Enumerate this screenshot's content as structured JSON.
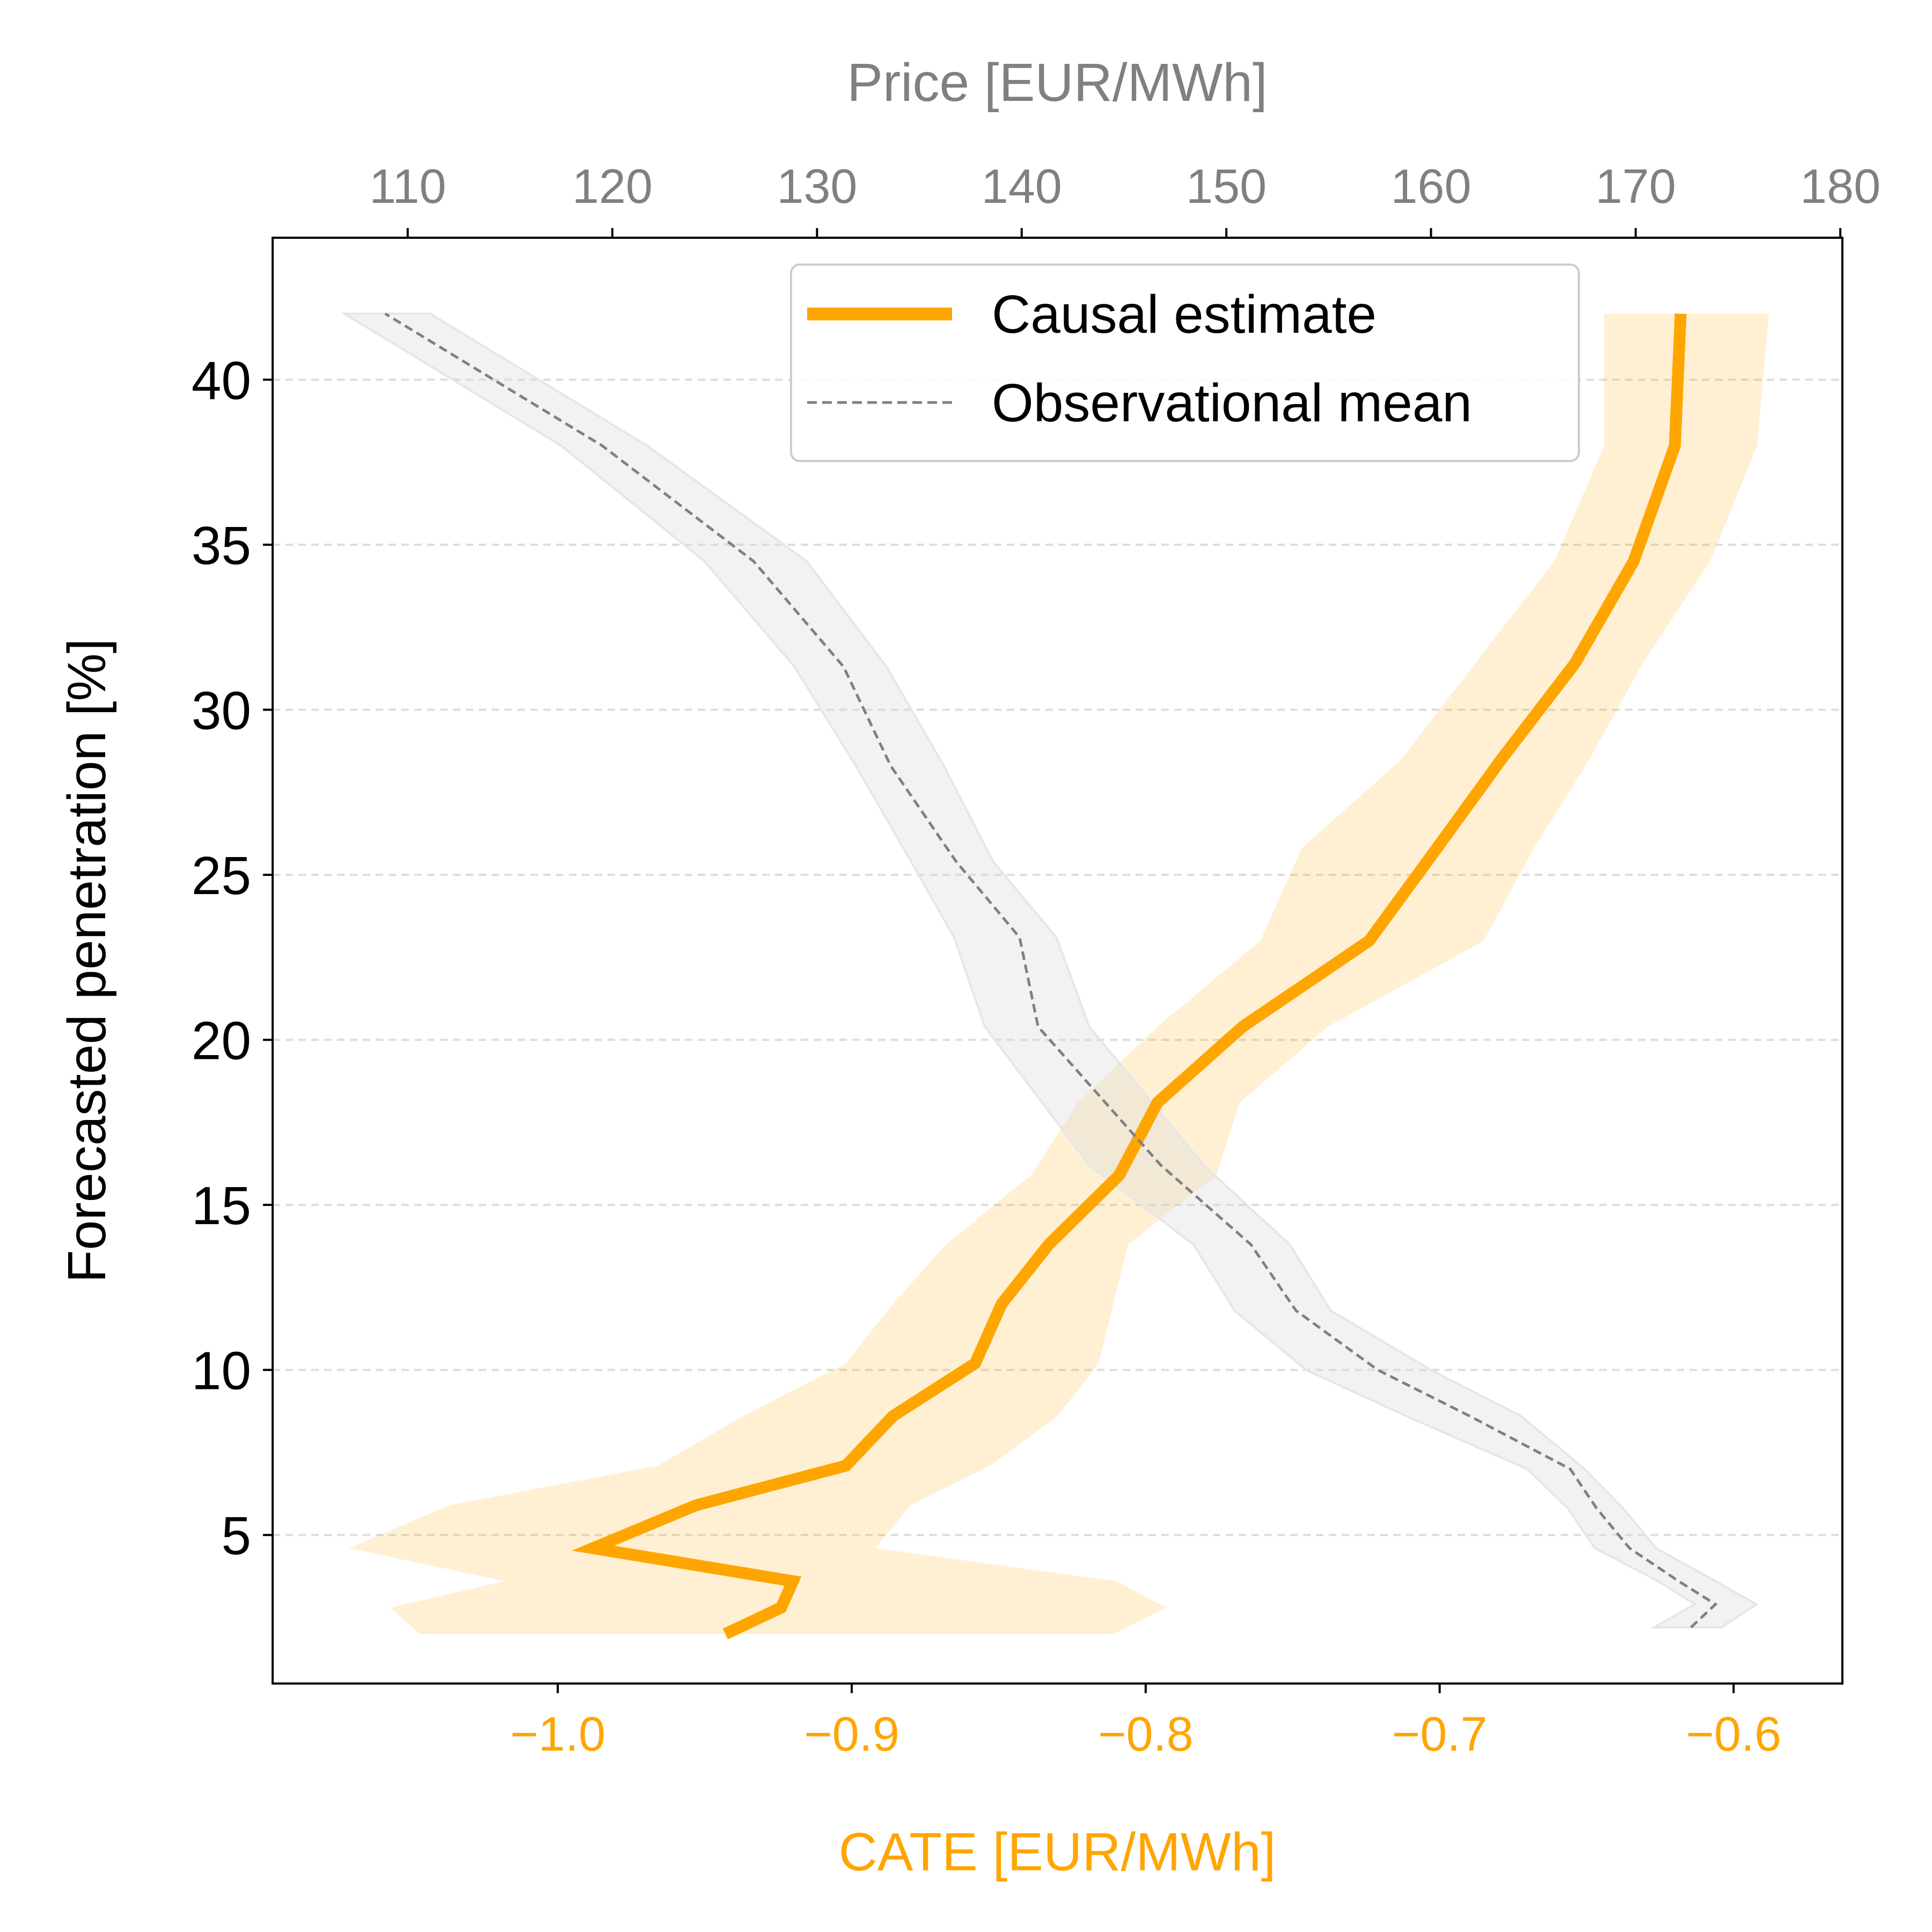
{
  "chart_data": {
    "type": "line",
    "orientation": "horizontal-x-vertical-y",
    "ylabel": "Forecasted penetration [%]",
    "y_ticks": [
      5,
      10,
      15,
      20,
      25,
      30,
      35,
      40
    ],
    "ylim": [
      0.5,
      44.3
    ],
    "grid": "horizontal dashed",
    "x_bottom": {
      "label": "CATE [EUR/MWh]",
      "ticks": [
        -1.0,
        -0.9,
        -0.8,
        -0.7,
        -0.6
      ],
      "tick_labels": [
        "−1.0",
        "−0.9",
        "−0.8",
        "−0.7",
        "−0.6"
      ],
      "xlim": [
        -1.097,
        -0.563
      ],
      "color": "#FFA500"
    },
    "x_top": {
      "label": "Price [EUR/MWh]",
      "ticks": [
        110,
        120,
        130,
        140,
        150,
        160,
        170,
        180
      ],
      "tick_labels": [
        "110",
        "120",
        "130",
        "140",
        "150",
        "160",
        "170",
        "180"
      ],
      "xlim": [
        103.4,
        180.1
      ],
      "color": "#808080"
    },
    "legend": {
      "placement": "top-right",
      "entries": [
        "Causal estimate",
        "Observational mean"
      ]
    },
    "series": [
      {
        "name": "Causal estimate",
        "axis": "bottom",
        "color": "#FFA500",
        "points": [
          {
            "y": 2.0,
            "x": -0.943,
            "lo": -1.047,
            "hi": -0.811
          },
          {
            "y": 2.8,
            "x": -0.924,
            "lo": -1.057,
            "hi": -0.793
          },
          {
            "y": 3.6,
            "x": -0.92,
            "lo": -1.018,
            "hi": -0.81
          },
          {
            "y": 4.6,
            "x": -0.988,
            "lo": -1.071,
            "hi": -0.892
          },
          {
            "y": 5.9,
            "x": -0.953,
            "lo": -1.037,
            "hi": -0.88
          },
          {
            "y": 7.1,
            "x": -0.902,
            "lo": -0.966,
            "hi": -0.853
          },
          {
            "y": 8.6,
            "x": -0.886,
            "lo": -0.937,
            "hi": -0.83
          },
          {
            "y": 10.2,
            "x": -0.858,
            "lo": -0.902,
            "hi": -0.816
          },
          {
            "y": 12.0,
            "x": -0.849,
            "lo": -0.886,
            "hi": -0.811
          },
          {
            "y": 13.8,
            "x": -0.833,
            "lo": -0.868,
            "hi": -0.806
          },
          {
            "y": 15.9,
            "x": -0.809,
            "lo": -0.839,
            "hi": -0.776
          },
          {
            "y": 18.1,
            "x": -0.796,
            "lo": -0.823,
            "hi": -0.768
          },
          {
            "y": 20.4,
            "x": -0.767,
            "lo": -0.796,
            "hi": -0.738
          },
          {
            "y": 23.0,
            "x": -0.724,
            "lo": -0.761,
            "hi": -0.685
          },
          {
            "y": 25.8,
            "x": -0.701,
            "lo": -0.747,
            "hi": -0.668
          },
          {
            "y": 28.5,
            "x": -0.679,
            "lo": -0.713,
            "hi": -0.649
          },
          {
            "y": 31.4,
            "x": -0.654,
            "lo": -0.688,
            "hi": -0.631
          },
          {
            "y": 34.5,
            "x": -0.634,
            "lo": -0.661,
            "hi": -0.608
          },
          {
            "y": 38.0,
            "x": -0.62,
            "lo": -0.644,
            "hi": -0.592
          },
          {
            "y": 42.0,
            "x": -0.618,
            "lo": -0.644,
            "hi": -0.588
          }
        ]
      },
      {
        "name": "Observational mean",
        "axis": "top",
        "color": "#808080",
        "points": [
          {
            "y": 2.2,
            "x": 172.7,
            "lo": 170.9,
            "hi": 174.2
          },
          {
            "y": 2.9,
            "x": 173.9,
            "lo": 172.9,
            "hi": 175.9
          },
          {
            "y": 3.6,
            "x": 172.1,
            "lo": 171.1,
            "hi": 173.9
          },
          {
            "y": 4.6,
            "x": 169.7,
            "lo": 168.0,
            "hi": 171.0
          },
          {
            "y": 5.8,
            "x": 168.1,
            "lo": 166.7,
            "hi": 169.4
          },
          {
            "y": 7.0,
            "x": 166.8,
            "lo": 164.7,
            "hi": 167.5
          },
          {
            "y": 8.6,
            "x": 161.9,
            "lo": 158.8,
            "hi": 164.4
          },
          {
            "y": 10.0,
            "x": 157.4,
            "lo": 153.9,
            "hi": 160.0
          },
          {
            "y": 11.8,
            "x": 153.4,
            "lo": 150.4,
            "hi": 155.1
          },
          {
            "y": 13.8,
            "x": 151.2,
            "lo": 148.4,
            "hi": 153.1
          },
          {
            "y": 16.2,
            "x": 146.8,
            "lo": 143.3,
            "hi": 148.9
          },
          {
            "y": 20.4,
            "x": 140.8,
            "lo": 138.2,
            "hi": 143.3
          },
          {
            "y": 23.1,
            "x": 139.9,
            "lo": 136.7,
            "hi": 141.7
          },
          {
            "y": 25.4,
            "x": 136.8,
            "lo": 134.6,
            "hi": 138.6
          },
          {
            "y": 28.3,
            "x": 133.6,
            "lo": 131.9,
            "hi": 136.2
          },
          {
            "y": 31.3,
            "x": 131.3,
            "lo": 128.9,
            "hi": 133.4
          },
          {
            "y": 34.5,
            "x": 126.9,
            "lo": 124.5,
            "hi": 129.5
          },
          {
            "y": 38.0,
            "x": 119.5,
            "lo": 117.5,
            "hi": 121.7
          },
          {
            "y": 42.0,
            "x": 108.9,
            "lo": 106.9,
            "hi": 111.1
          }
        ]
      }
    ]
  }
}
